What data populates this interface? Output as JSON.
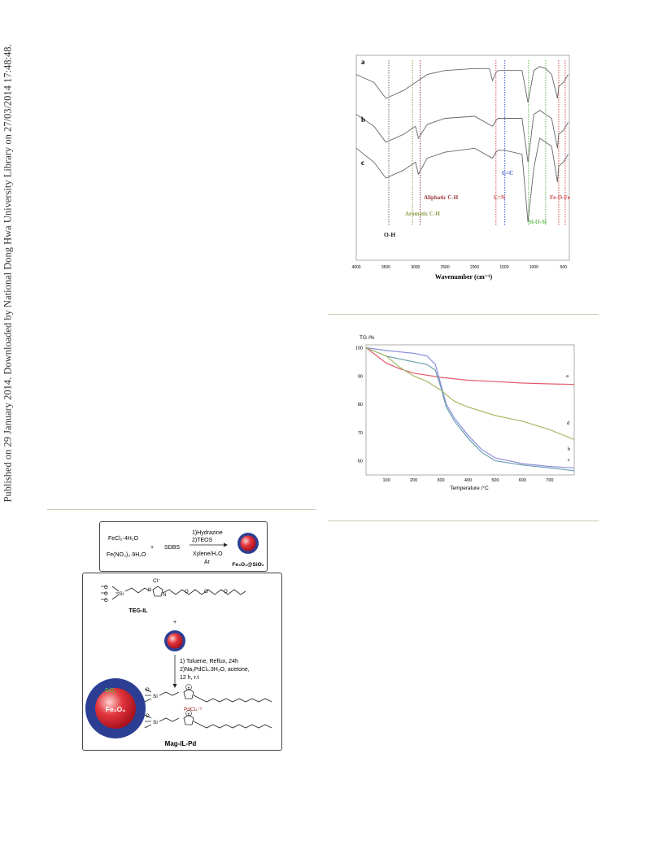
{
  "sidebar": {
    "text": "Published on 29 January 2014. Downloaded by National Dong Hwa University Library on 27/03/2014 17:48:48."
  },
  "ftir": {
    "xlabel": "Wavenumber (cm⁻¹)",
    "xticks": [
      "4000",
      "3500",
      "3000",
      "2500",
      "2000",
      "1500",
      "1000",
      "500"
    ],
    "curve_labels": [
      "a",
      "b",
      "c"
    ],
    "annotations": {
      "oh": "O-H",
      "aromatic": "Aromatic C-H",
      "aliphatic": "Aliphatic C-H",
      "cn": "C=N",
      "cc": "C=C",
      "siosi": "Si-O-Si",
      "feofe": "Fe-O-Fe"
    }
  },
  "tga": {
    "ylabel": "TG /%",
    "xlabel": "Temperature /°C",
    "yticks": [
      "100",
      "90",
      "80",
      "70",
      "60"
    ],
    "xticks": [
      "100",
      "200",
      "300",
      "400",
      "500",
      "600",
      "700"
    ],
    "curve_labels": [
      "a",
      "b",
      "c",
      "d"
    ]
  },
  "scheme": {
    "reagent1": "FeCl₂·4H₂O",
    "reagent2": "Fe(NO₃)₃·9H₂O",
    "plus": "+",
    "sdbs": "SDBS",
    "step1a": "1)Hydrazine",
    "step1b": "2)TEOS",
    "solvent1": "Xylene/H₂O",
    "solvent2": "Ar",
    "product1": "Fe₃O₄@SiO₂",
    "il_name": "TEG-IL",
    "anion": "Cl⁻",
    "plus2": "+",
    "cond1": "1) Toluene, Reflux, 24h",
    "cond2": "2)Na₂PdCl₄.3H₂O, acetone,",
    "cond3": "12 h, r.t",
    "sio2": "SiO₂",
    "core": "Fe₃O₄",
    "pdcl": "PdCl₄⁻²",
    "final_name": "Mag-IL-Pd"
  },
  "chart_data": [
    {
      "type": "line",
      "title": "",
      "xlabel": "Wavenumber (cm⁻¹)",
      "ylabel": "",
      "xlim": [
        4000,
        400
      ],
      "series": [
        {
          "name": "a",
          "x": [
            4000,
            3700,
            3500,
            3200,
            3000,
            2800,
            2500,
            2000,
            1750,
            1700,
            1640,
            1600,
            1500,
            1200,
            1100,
            1000,
            900,
            800,
            700,
            600,
            580,
            500,
            420
          ],
          "y": [
            92,
            88,
            80,
            84,
            88,
            92,
            94,
            95,
            95,
            89,
            93,
            94,
            94,
            94,
            78,
            94,
            96,
            95,
            92,
            80,
            86,
            88,
            92
          ]
        },
        {
          "name": "b",
          "x": [
            4000,
            3700,
            3500,
            3200,
            3000,
            2950,
            2800,
            2500,
            2000,
            1700,
            1640,
            1600,
            1500,
            1200,
            1100,
            1000,
            900,
            800,
            700,
            600,
            580,
            500,
            420
          ],
          "y": [
            72,
            66,
            58,
            62,
            66,
            60,
            67,
            70,
            71,
            66,
            69,
            70,
            70,
            70,
            48,
            72,
            74,
            72,
            70,
            55,
            62,
            64,
            68
          ]
        },
        {
          "name": "c",
          "x": [
            4000,
            3700,
            3500,
            3200,
            3000,
            2950,
            2800,
            2500,
            2000,
            1700,
            1640,
            1600,
            1500,
            1200,
            1100,
            1000,
            900,
            800,
            700,
            600,
            580,
            500,
            420
          ],
          "y": [
            55,
            48,
            40,
            44,
            48,
            42,
            50,
            53,
            55,
            50,
            53,
            54,
            54,
            52,
            18,
            45,
            60,
            58,
            56,
            38,
            46,
            48,
            52
          ]
        }
      ]
    },
    {
      "type": "line",
      "title": "",
      "xlabel": "Temperature /°C",
      "ylabel": "TG /%",
      "xlim": [
        25,
        790
      ],
      "ylim": [
        55,
        101
      ],
      "series": [
        {
          "name": "a",
          "x": [
            25,
            100,
            150,
            200,
            300,
            400,
            500,
            600,
            700,
            790
          ],
          "y": [
            100,
            94.5,
            92.5,
            91,
            89.5,
            88.5,
            88,
            87.5,
            87.2,
            87
          ]
        },
        {
          "name": "b",
          "x": [
            25,
            100,
            150,
            200,
            250,
            280,
            300,
            320,
            350,
            400,
            450,
            500,
            600,
            700,
            790
          ],
          "y": [
            100,
            99,
            98.5,
            98,
            97,
            94,
            87,
            80,
            75,
            69,
            64,
            61,
            59,
            58,
            57.5
          ]
        },
        {
          "name": "c",
          "x": [
            25,
            100,
            150,
            200,
            250,
            280,
            300,
            320,
            350,
            400,
            450,
            500,
            600,
            700,
            790
          ],
          "y": [
            100,
            97,
            96,
            95,
            94,
            92,
            86,
            79,
            74,
            68,
            63,
            60,
            58.5,
            57.5,
            56.5
          ]
        },
        {
          "name": "d",
          "x": [
            25,
            100,
            150,
            200,
            250,
            300,
            350,
            400,
            500,
            600,
            700,
            790
          ],
          "y": [
            100,
            97,
            93,
            90,
            88,
            85,
            81,
            79,
            76,
            74,
            71,
            67.5
          ]
        }
      ]
    }
  ]
}
